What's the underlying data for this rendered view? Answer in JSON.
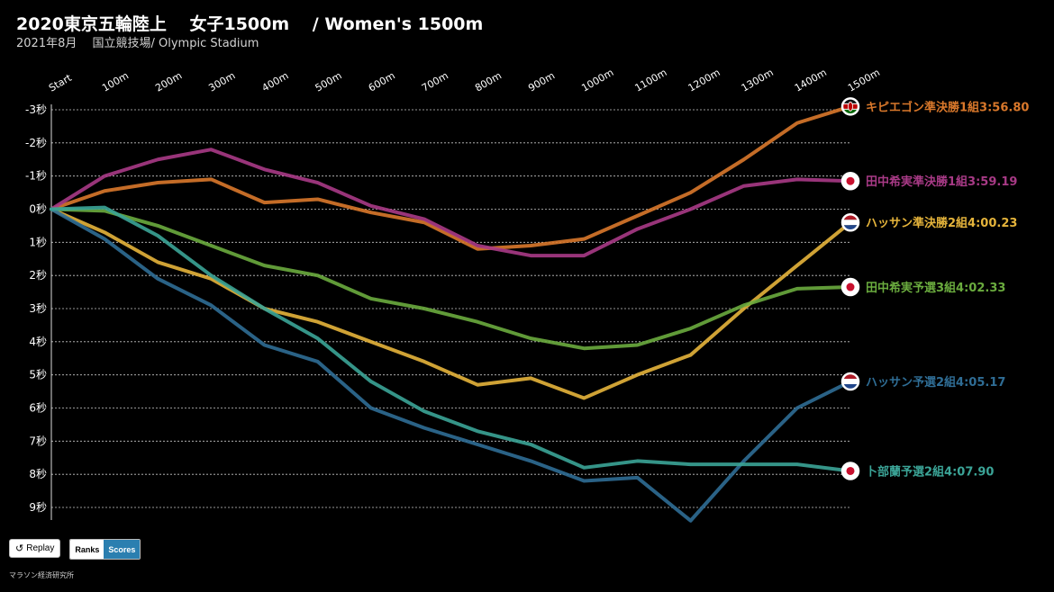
{
  "header": {
    "title": "2020東京五輪陸上　 女子1500m　 / Women's 1500m",
    "subtitle": "2021年8月　 国立競技場/ Olympic Stadium"
  },
  "controls": {
    "replay_label": "Replay",
    "replay_icon": "replay-icon",
    "toggle": {
      "ranks": "Ranks",
      "scores": "Scores",
      "active": "Scores"
    }
  },
  "footer": {
    "credit": "マラソン経済研究所"
  },
  "chart_data": {
    "type": "line",
    "title": "2020東京五輪陸上　 女子1500m　 / Women's 1500m",
    "subtitle": "2021年8月　 国立競技場/ Olympic Stadium",
    "x": [
      "Start",
      "100m",
      "200m",
      "300m",
      "400m",
      "500m",
      "600m",
      "700m",
      "800m",
      "900m",
      "1000m",
      "1100m",
      "1200m",
      "1300m",
      "1400m",
      "1500m"
    ],
    "y_ticks": [
      -3,
      -2,
      -1,
      0,
      1,
      2,
      3,
      4,
      5,
      6,
      7,
      8,
      9
    ],
    "y_tick_labels": [
      "-3秒",
      "-2秒",
      "-1秒",
      "0秒",
      "1秒",
      "2秒",
      "3秒",
      "4秒",
      "5秒",
      "6秒",
      "7秒",
      "8秒",
      "9秒"
    ],
    "ylim": [
      -3,
      9
    ],
    "y_inverted": true,
    "grid": true,
    "legend": "line-end labels",
    "series": [
      {
        "name": "キピエゴン準決勝1組3:56.80",
        "flag": "kenya",
        "color": "#d9782b",
        "values": [
          0,
          -0.55,
          -0.8,
          -0.9,
          -0.2,
          -0.3,
          0.1,
          0.4,
          1.2,
          1.1,
          0.9,
          0.2,
          -0.5,
          -1.5,
          -2.6,
          -3.1
        ]
      },
      {
        "name": "田中希実準決勝1組3:59.19",
        "flag": "japan",
        "color": "#a83a86",
        "values": [
          0,
          -1.0,
          -1.5,
          -1.8,
          -1.2,
          -0.8,
          -0.1,
          0.3,
          1.1,
          1.4,
          1.4,
          0.6,
          0.0,
          -0.7,
          -0.9,
          -0.85
        ]
      },
      {
        "name": "ハッサン準決勝2組4:00.23",
        "flag": "netherlands",
        "color": "#e5b43b",
        "values": [
          0,
          0.7,
          1.6,
          2.1,
          3.0,
          3.4,
          4.0,
          4.6,
          5.3,
          5.1,
          5.7,
          5.0,
          4.4,
          3.0,
          1.7,
          0.4
        ]
      },
      {
        "name": "田中希実予選3組4:02.33",
        "flag": "japan",
        "color": "#6aab3e",
        "values": [
          0,
          0.05,
          0.5,
          1.1,
          1.7,
          2.0,
          2.7,
          3.0,
          3.4,
          3.9,
          4.2,
          4.1,
          3.6,
          2.9,
          2.4,
          2.35
        ]
      },
      {
        "name": "ハッサン予選2組4:05.17",
        "flag": "netherlands",
        "color": "#2f6d95",
        "values": [
          0,
          0.9,
          2.1,
          2.9,
          4.1,
          4.6,
          6.0,
          6.6,
          7.1,
          7.6,
          8.2,
          8.1,
          9.4,
          7.6,
          6.0,
          5.2
        ]
      },
      {
        "name": "卜部蘭予選2組4:07.90",
        "flag": "japan",
        "color": "#3ba497",
        "values": [
          0,
          -0.05,
          0.8,
          2.0,
          3.0,
          3.9,
          5.2,
          6.1,
          6.7,
          7.1,
          7.8,
          7.6,
          7.7,
          7.7,
          7.7,
          7.9
        ]
      }
    ]
  }
}
